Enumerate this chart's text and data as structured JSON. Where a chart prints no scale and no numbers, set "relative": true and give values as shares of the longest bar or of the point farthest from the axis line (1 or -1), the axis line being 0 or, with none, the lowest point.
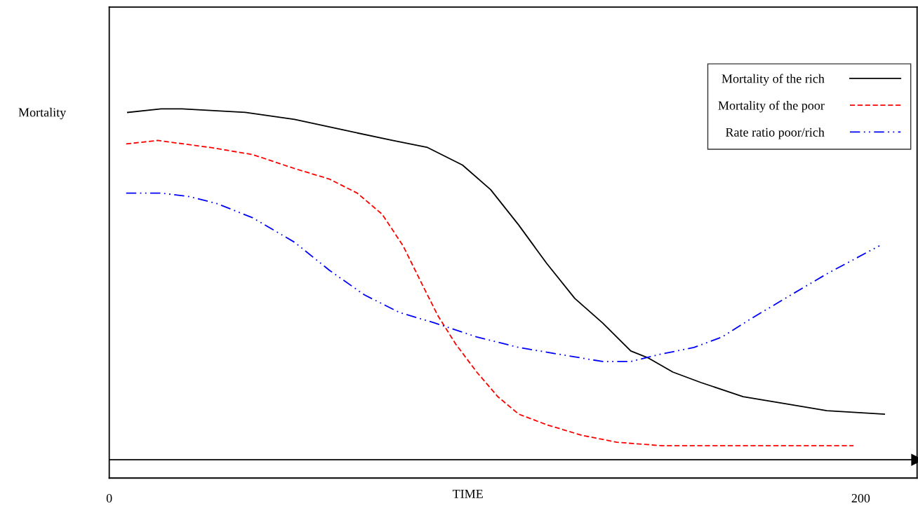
{
  "chart_data": {
    "type": "line",
    "relative": true,
    "xlabel": "TIME",
    "ylabel": "Mortality",
    "xlim": [
      0,
      215
    ],
    "xticks": [
      0,
      200
    ],
    "legend": "top right",
    "grid": false,
    "marker": "none",
    "series": [
      {
        "name": "Mortality of the rich",
        "color": "#000000",
        "line_style": "solid",
        "x": [
          4.9,
          13.8,
          19.4,
          36.2,
          49.3,
          62.3,
          75.4,
          84.7,
          94.0,
          101.5,
          108.9,
          116.4,
          123.9,
          131.3,
          138.8,
          143.5,
          150.0,
          157.5,
          168.7,
          179.9,
          191.0,
          206.3
        ],
        "values": [
          0.99,
          1.0,
          1.0,
          0.99,
          0.97,
          0.94,
          0.91,
          0.89,
          0.84,
          0.77,
          0.67,
          0.56,
          0.46,
          0.39,
          0.31,
          0.29,
          0.25,
          0.22,
          0.18,
          0.16,
          0.14,
          0.13
        ]
      },
      {
        "name": "Mortality of the poor",
        "color": "#ff0000",
        "line_style": "dashed",
        "x": [
          4.5,
          12.9,
          26.9,
          38.1,
          49.3,
          58.6,
          66.0,
          72.6,
          78.2,
          82.8,
          87.5,
          92.2,
          97.8,
          103.4,
          109.0,
          116.4,
          125.7,
          135.1,
          147.2,
          157.5,
          176.1,
          198.1
        ],
        "values": [
          0.9,
          0.91,
          0.89,
          0.87,
          0.83,
          0.8,
          0.76,
          0.7,
          0.61,
          0.51,
          0.41,
          0.33,
          0.25,
          0.18,
          0.13,
          0.1,
          0.07,
          0.05,
          0.04,
          0.04,
          0.04,
          0.04
        ]
      },
      {
        "name": "Rate ratio poor/rich",
        "color": "#0000ff",
        "line_style": "dashdot",
        "x": [
          4.5,
          13.8,
          21.3,
          28.7,
          38.1,
          49.3,
          58.6,
          67.9,
          77.2,
          86.6,
          97.8,
          109.0,
          120.1,
          131.3,
          138.8,
          146.3,
          155.6,
          163.1,
          170.5,
          179.9,
          191.0,
          205.0
        ],
        "values": [
          0.76,
          0.76,
          0.75,
          0.73,
          0.69,
          0.62,
          0.54,
          0.47,
          0.42,
          0.39,
          0.35,
          0.32,
          0.3,
          0.28,
          0.28,
          0.3,
          0.32,
          0.35,
          0.4,
          0.46,
          0.53,
          0.61
        ]
      }
    ]
  }
}
